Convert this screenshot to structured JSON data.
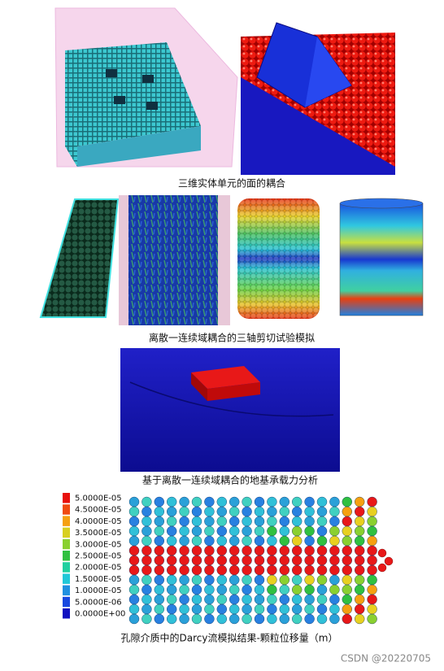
{
  "captions": [
    "三维实体单元的面的耦合",
    "离散一连续域耦合的三轴剪切试验模拟",
    "基于离散一连续域耦合的地基承载力分析",
    "孔隙介质中的Darcy流模拟结果-颗粒位移量（m）"
  ],
  "legend": {
    "entries": [
      {
        "label": "5.0000E-05",
        "color": "#e8100c"
      },
      {
        "label": "4.5000E-05",
        "color": "#f04a10"
      },
      {
        "label": "4.0000E-05",
        "color": "#f5a010"
      },
      {
        "label": "3.5000E-05",
        "color": "#d8d020"
      },
      {
        "label": "3.0000E-05",
        "color": "#8ad030"
      },
      {
        "label": "2.5000E-05",
        "color": "#30c040"
      },
      {
        "label": "2.0000E-05",
        "color": "#20d0a0"
      },
      {
        "label": "1.5000E-05",
        "color": "#20c8d8"
      },
      {
        "label": "1.0000E-05",
        "color": "#2090e0"
      },
      {
        "label": "5.0000E-06",
        "color": "#1848e0"
      },
      {
        "label": "0.0000E+00",
        "color": "#1010c0"
      }
    ]
  },
  "watermark": "CSDN @20220705"
}
